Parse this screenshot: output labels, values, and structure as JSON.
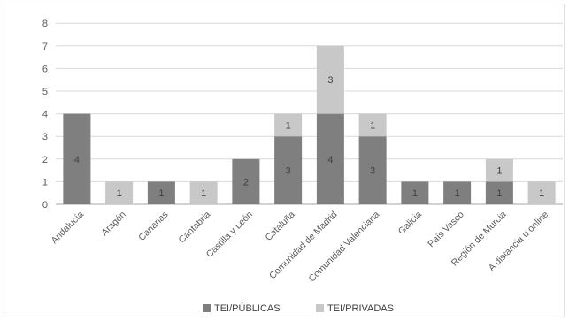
{
  "chart_data": {
    "type": "bar",
    "stacked": true,
    "categories": [
      "Andalucía",
      "Aragón",
      "Canarias",
      "Cantabria",
      "Castilla y León",
      "Cataluña",
      "Comunidad de Madrid",
      "Comunidad Valenciana",
      "Galicia",
      "País Vasco",
      "Región de Murcia",
      "A distancia u online"
    ],
    "series": [
      {
        "name": "TEI/PÚBLICAS",
        "color": "#7f7f7f",
        "values": [
          4,
          0,
          1,
          0,
          2,
          3,
          4,
          3,
          1,
          1,
          1,
          0
        ]
      },
      {
        "name": "TEI/PRIVADAS",
        "color": "#c8c8c8",
        "values": [
          0,
          1,
          0,
          1,
          0,
          1,
          3,
          1,
          0,
          0,
          1,
          1
        ]
      }
    ],
    "ylim": [
      0,
      8
    ],
    "yticks": [
      0,
      1,
      2,
      3,
      4,
      5,
      6,
      7,
      8
    ],
    "grid": true,
    "legend_position": "bottom"
  }
}
